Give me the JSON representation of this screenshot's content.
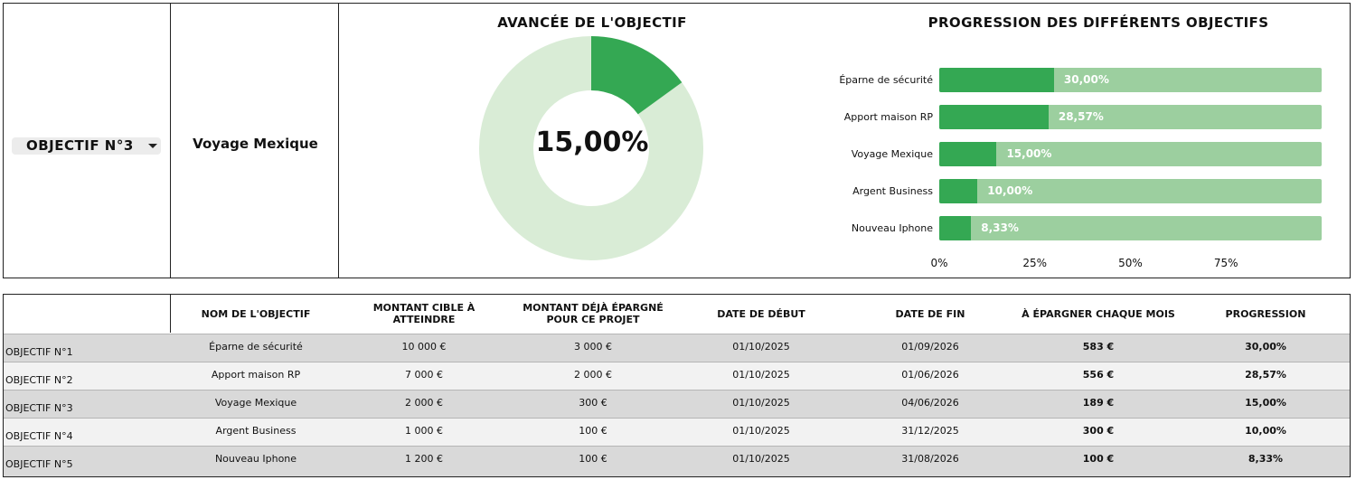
{
  "selector": {
    "label": "OBJECTIF N°3"
  },
  "selected_goal": {
    "name": "Voyage Mexique"
  },
  "donut": {
    "title": "AVANCÉE DE L'OBJECTIF",
    "percent_label": "15,00%",
    "value": 0.15,
    "colors": {
      "filled": "#34a853",
      "remaining": "#d9ecd6"
    }
  },
  "chart_data": {
    "type": "bar",
    "orientation": "horizontal",
    "title": "PROGRESSION DES DIFFÉRENTS OBJECTIFS",
    "categories": [
      "Éparne de sécurité",
      "Apport maison RP",
      "Voyage Mexique",
      "Argent Business",
      "Nouveau Iphone"
    ],
    "values": [
      30.0,
      28.57,
      15.0,
      10.0,
      8.33
    ],
    "value_labels": [
      "30,00%",
      "28,57%",
      "15,00%",
      "10,00%",
      "8,33%"
    ],
    "xlim": [
      0,
      100
    ],
    "x_ticks": [
      "0%",
      "25%",
      "50%",
      "75%"
    ],
    "colors": {
      "fill": "#34a853",
      "track": "#9ccf9f"
    },
    "grid": false
  },
  "table": {
    "headers": [
      "",
      "NOM DE L'OBJECTIF",
      "MONTANT CIBLE À ATTEINDRE",
      "MONTANT DÉJÀ ÉPARGNÉ POUR CE PROJET",
      "DATE DE DÉBUT",
      "DATE DE FIN",
      "À ÉPARGNER CHAQUE MOIS",
      "PROGRESSION"
    ],
    "rows": [
      [
        "OBJECTIF N°1",
        "Éparne de sécurité",
        "10 000 €",
        "3 000 €",
        "01/10/2025",
        "01/09/2026",
        "583 €",
        "30,00%"
      ],
      [
        "OBJECTIF N°2",
        "Apport maison RP",
        "7 000 €",
        "2 000 €",
        "01/10/2025",
        "01/06/2026",
        "556 €",
        "28,57%"
      ],
      [
        "OBJECTIF N°3",
        "Voyage Mexique",
        "2 000 €",
        "300 €",
        "01/10/2025",
        "04/06/2026",
        "189 €",
        "15,00%"
      ],
      [
        "OBJECTIF N°4",
        "Argent Business",
        "1 000 €",
        "100 €",
        "01/10/2025",
        "31/12/2025",
        "300 €",
        "10,00%"
      ],
      [
        "OBJECTIF N°5",
        "Nouveau Iphone",
        "1 200 €",
        "100 €",
        "01/10/2025",
        "31/08/2026",
        "100 €",
        "8,33%"
      ]
    ]
  }
}
